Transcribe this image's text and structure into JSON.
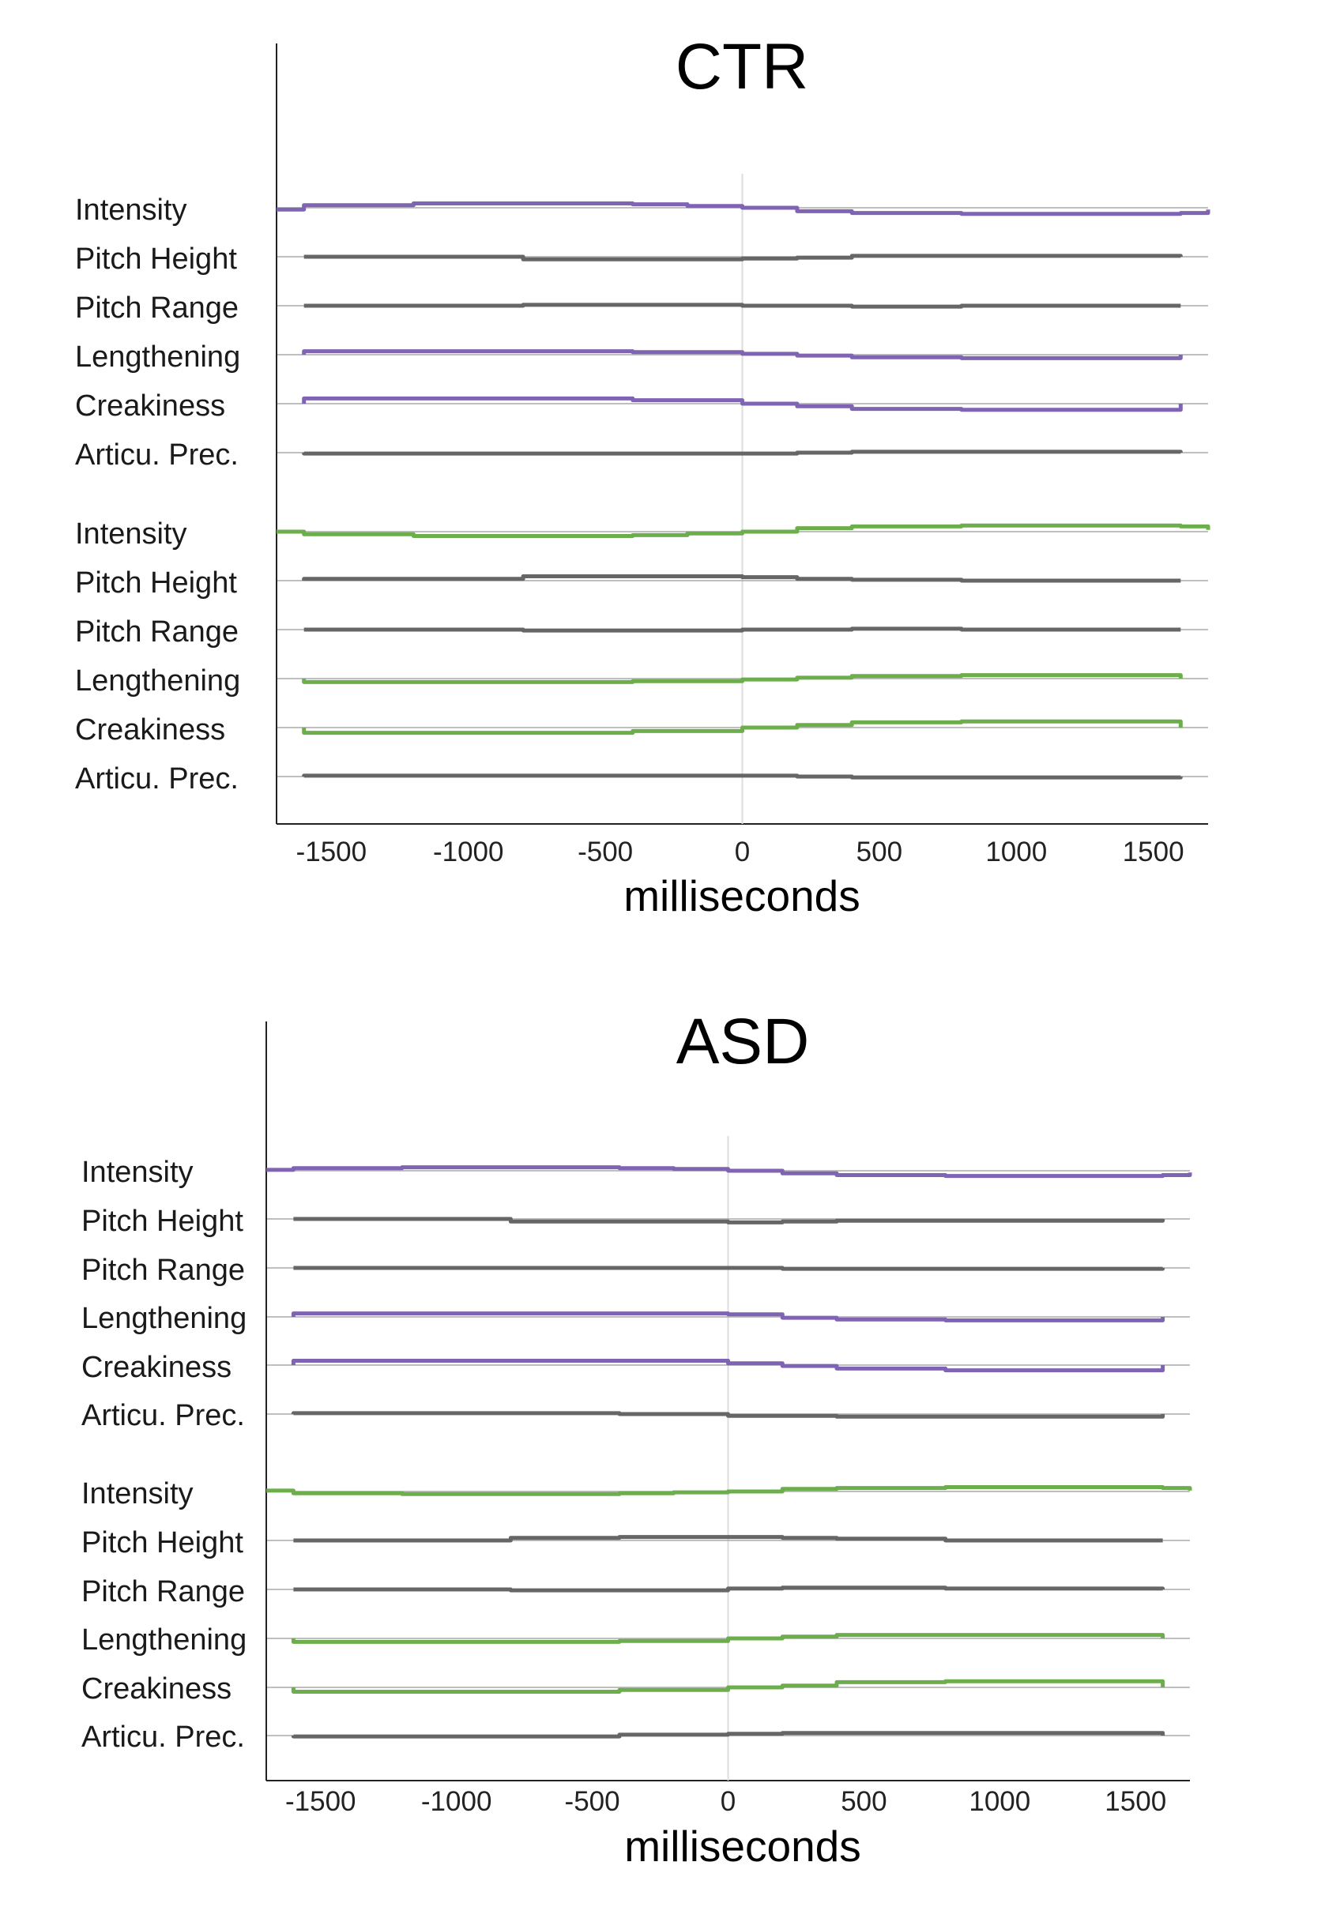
{
  "chart_data": [
    {
      "type": "line",
      "title": "CTR",
      "xlabel": "milliseconds",
      "xlim": [
        -1700,
        1700
      ],
      "xticks": [
        -1500,
        -1000,
        -500,
        0,
        500,
        1000,
        1500
      ],
      "colors": {
        "speaker_a": "#8064b4",
        "speaker_b": "#6cae4c",
        "neutral": "#666666",
        "baseline": "#aaaaaa"
      },
      "groups": [
        {
          "highlight": "purple",
          "rows": [
            {
              "label": "Intensity",
              "highlighted": true,
              "x": [
                -1700,
                -1600,
                -1200,
                -800,
                -400,
                -200,
                0,
                200,
                400,
                800,
                1200,
                1600,
                1700
              ],
              "y": [
                -0.1,
                0.15,
                0.25,
                0.25,
                0.2,
                0.1,
                0.0,
                -0.2,
                -0.3,
                -0.35,
                -0.35,
                -0.3,
                -0.1
              ]
            },
            {
              "label": "Pitch Height",
              "highlighted": false,
              "x": [
                -1600,
                -800,
                -400,
                0,
                200,
                400,
                800,
                1600
              ],
              "y": [
                0.0,
                -0.15,
                -0.15,
                -0.1,
                -0.05,
                0.05,
                0.05,
                0.05
              ]
            },
            {
              "label": "Pitch Range",
              "highlighted": false,
              "x": [
                -1600,
                -800,
                -400,
                0,
                200,
                400,
                800,
                1600
              ],
              "y": [
                0.0,
                0.05,
                0.05,
                0.0,
                0.0,
                -0.05,
                0.0,
                0.0
              ]
            },
            {
              "label": "Lengthening",
              "highlighted": true,
              "x": [
                -1600,
                -800,
                -400,
                0,
                200,
                400,
                800,
                1600
              ],
              "y": [
                0.2,
                0.2,
                0.15,
                0.05,
                -0.05,
                -0.15,
                -0.2,
                0.0
              ]
            },
            {
              "label": "Creakiness",
              "highlighted": true,
              "x": [
                -1600,
                -800,
                -400,
                0,
                200,
                400,
                800,
                1600
              ],
              "y": [
                0.3,
                0.3,
                0.2,
                0.0,
                -0.15,
                -0.3,
                -0.35,
                0.0
              ]
            },
            {
              "label": "Articu. Prec.",
              "highlighted": false,
              "x": [
                -1600,
                -800,
                -400,
                0,
                200,
                400,
                800,
                1600
              ],
              "y": [
                -0.05,
                -0.05,
                -0.05,
                -0.05,
                0.0,
                0.05,
                0.05,
                0.05
              ]
            }
          ]
        },
        {
          "highlight": "green",
          "rows": [
            {
              "label": "Intensity",
              "highlighted": true,
              "x": [
                -1700,
                -1600,
                -1200,
                -800,
                -400,
                -200,
                0,
                200,
                400,
                800,
                1200,
                1600,
                1700
              ],
              "y": [
                0.0,
                -0.15,
                -0.25,
                -0.25,
                -0.2,
                -0.1,
                0.0,
                0.2,
                0.3,
                0.35,
                0.35,
                0.3,
                0.1
              ]
            },
            {
              "label": "Pitch Height",
              "highlighted": false,
              "x": [
                -1600,
                -800,
                -400,
                0,
                200,
                400,
                800,
                1600
              ],
              "y": [
                0.1,
                0.25,
                0.25,
                0.2,
                0.1,
                0.05,
                0.0,
                0.0
              ]
            },
            {
              "label": "Pitch Range",
              "highlighted": false,
              "x": [
                -1600,
                -800,
                -400,
                0,
                200,
                400,
                800,
                1600
              ],
              "y": [
                0.0,
                -0.05,
                -0.05,
                0.0,
                0.0,
                0.05,
                0.0,
                0.0
              ]
            },
            {
              "label": "Lengthening",
              "highlighted": true,
              "x": [
                -1600,
                -800,
                -400,
                0,
                200,
                400,
                800,
                1600
              ],
              "y": [
                -0.2,
                -0.2,
                -0.15,
                -0.05,
                0.05,
                0.15,
                0.2,
                0.0
              ]
            },
            {
              "label": "Creakiness",
              "highlighted": true,
              "x": [
                -1600,
                -800,
                -400,
                0,
                200,
                400,
                800,
                1600
              ],
              "y": [
                -0.3,
                -0.3,
                -0.2,
                0.0,
                0.15,
                0.3,
                0.35,
                0.0
              ]
            },
            {
              "label": "Articu. Prec.",
              "highlighted": false,
              "x": [
                -1600,
                -800,
                -400,
                0,
                200,
                400,
                800,
                1600
              ],
              "y": [
                0.05,
                0.05,
                0.05,
                0.05,
                0.0,
                -0.05,
                -0.05,
                -0.05
              ]
            }
          ]
        }
      ]
    },
    {
      "type": "line",
      "title": "ASD",
      "xlabel": "milliseconds",
      "xlim": [
        -1700,
        1700
      ],
      "xticks": [
        -1500,
        -1000,
        -500,
        0,
        500,
        1000,
        1500
      ],
      "colors": {
        "speaker_a": "#8064b4",
        "speaker_b": "#6cae4c",
        "neutral": "#666666",
        "baseline": "#aaaaaa"
      },
      "groups": [
        {
          "highlight": "purple",
          "rows": [
            {
              "label": "Intensity",
              "highlighted": true,
              "x": [
                -1700,
                -1600,
                -1200,
                -800,
                -400,
                -200,
                0,
                200,
                400,
                800,
                1200,
                1600,
                1700
              ],
              "y": [
                0.05,
                0.15,
                0.2,
                0.2,
                0.15,
                0.1,
                0.0,
                -0.15,
                -0.25,
                -0.3,
                -0.3,
                -0.25,
                -0.1
              ]
            },
            {
              "label": "Pitch Height",
              "highlighted": false,
              "x": [
                -1600,
                -800,
                -400,
                0,
                200,
                400,
                800,
                1600
              ],
              "y": [
                0.0,
                -0.15,
                -0.15,
                -0.2,
                -0.15,
                -0.1,
                -0.1,
                0.0
              ]
            },
            {
              "label": "Pitch Range",
              "highlighted": false,
              "x": [
                -1600,
                -800,
                -400,
                0,
                200,
                400,
                800,
                1600
              ],
              "y": [
                0.0,
                0.0,
                0.0,
                0.0,
                -0.05,
                -0.05,
                -0.05,
                -0.05
              ]
            },
            {
              "label": "Lengthening",
              "highlighted": true,
              "x": [
                -1600,
                -800,
                -400,
                0,
                200,
                400,
                800,
                1600
              ],
              "y": [
                0.2,
                0.2,
                0.2,
                0.15,
                -0.05,
                -0.15,
                -0.2,
                0.0
              ]
            },
            {
              "label": "Creakiness",
              "highlighted": true,
              "x": [
                -1600,
                -800,
                -400,
                0,
                200,
                400,
                800,
                1600
              ],
              "y": [
                0.25,
                0.25,
                0.25,
                0.1,
                -0.05,
                -0.2,
                -0.3,
                -0.3
              ]
            },
            {
              "label": "Articu. Prec.",
              "highlighted": false,
              "x": [
                -1600,
                -800,
                -400,
                0,
                200,
                400,
                800,
                1600
              ],
              "y": [
                0.05,
                0.05,
                0.0,
                -0.1,
                -0.1,
                -0.15,
                -0.15,
                -0.1
              ]
            }
          ]
        },
        {
          "highlight": "green",
          "rows": [
            {
              "label": "Intensity",
              "highlighted": true,
              "x": [
                -1700,
                -1600,
                -1200,
                -800,
                -400,
                -200,
                0,
                200,
                400,
                800,
                1200,
                1600,
                1700
              ],
              "y": [
                0.05,
                -0.1,
                -0.15,
                -0.15,
                -0.1,
                -0.05,
                0.0,
                0.15,
                0.2,
                0.25,
                0.25,
                0.2,
                0.05
              ]
            },
            {
              "label": "Pitch Height",
              "highlighted": false,
              "x": [
                -1600,
                -800,
                -400,
                0,
                200,
                400,
                800,
                1600
              ],
              "y": [
                0.0,
                0.15,
                0.2,
                0.2,
                0.15,
                0.1,
                0.0,
                0.0
              ]
            },
            {
              "label": "Pitch Range",
              "highlighted": false,
              "x": [
                -1600,
                -800,
                -400,
                0,
                200,
                400,
                800,
                1600
              ],
              "y": [
                0.0,
                -0.05,
                -0.05,
                0.05,
                0.1,
                0.1,
                0.05,
                0.0
              ]
            },
            {
              "label": "Lengthening",
              "highlighted": true,
              "x": [
                -1600,
                -800,
                -400,
                0,
                200,
                400,
                800,
                1600
              ],
              "y": [
                -0.2,
                -0.2,
                -0.15,
                0.0,
                0.1,
                0.2,
                0.2,
                0.0
              ]
            },
            {
              "label": "Creakiness",
              "highlighted": true,
              "x": [
                -1600,
                -800,
                -400,
                0,
                200,
                400,
                800,
                1600
              ],
              "y": [
                -0.25,
                -0.25,
                -0.15,
                0.0,
                0.1,
                0.3,
                0.35,
                0.35
              ]
            },
            {
              "label": "Articu. Prec.",
              "highlighted": false,
              "x": [
                -1600,
                -800,
                -400,
                0,
                200,
                400,
                800,
                1600
              ],
              "y": [
                -0.05,
                -0.05,
                0.05,
                0.1,
                0.15,
                0.15,
                0.15,
                0.15
              ]
            }
          ]
        }
      ]
    }
  ]
}
